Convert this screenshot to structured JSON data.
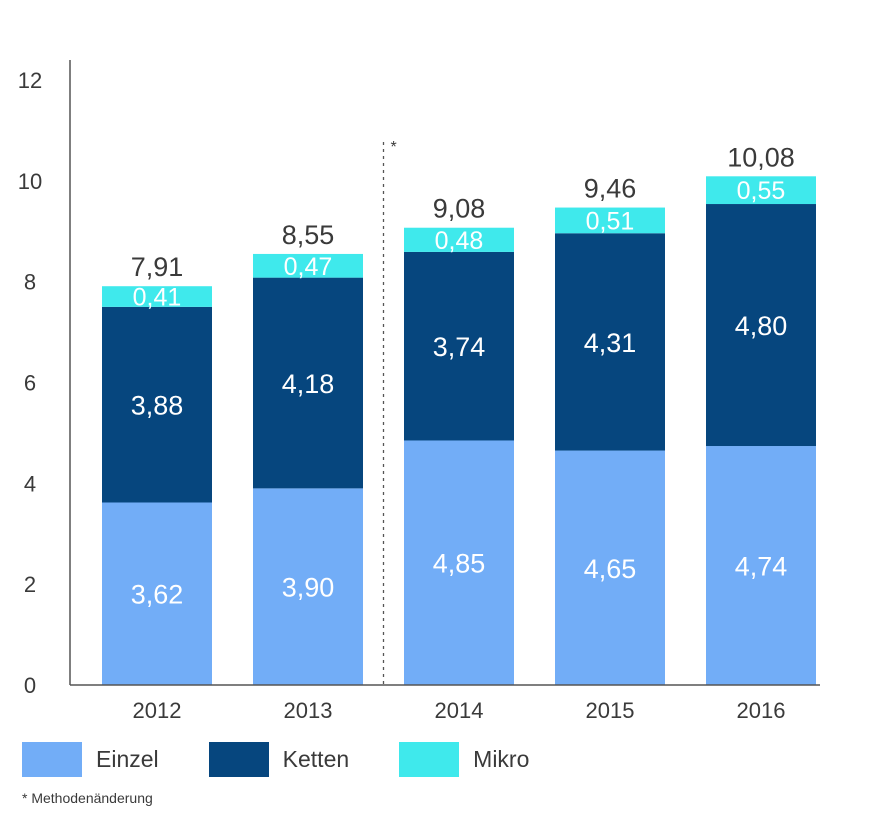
{
  "chart_data": {
    "type": "bar",
    "stacked": true,
    "categories": [
      "2012",
      "2013",
      "2014",
      "2015",
      "2016"
    ],
    "series": [
      {
        "name": "Einzel",
        "values": [
          3.62,
          3.9,
          4.85,
          4.65,
          4.74
        ],
        "labels": [
          "3,62",
          "3,90",
          "4,85",
          "4,65",
          "4,74"
        ],
        "color": "#72adf7"
      },
      {
        "name": "Ketten",
        "values": [
          3.88,
          4.18,
          3.74,
          4.31,
          4.8
        ],
        "labels": [
          "3,88",
          "4,18",
          "3,74",
          "4,31",
          "4,80"
        ],
        "color": "#06467e"
      },
      {
        "name": "Mikro",
        "values": [
          0.41,
          0.47,
          0.48,
          0.51,
          0.55
        ],
        "labels": [
          "0,41",
          "0,47",
          "0,48",
          "0,51",
          "0,55"
        ],
        "color": "#3fe9ec"
      }
    ],
    "totals": [
      "7,91",
      "8,55",
      "9,08",
      "9,46",
      "10,08"
    ],
    "yticks": [
      "0",
      "2",
      "4",
      "6",
      "8",
      "10",
      "12"
    ],
    "ylim": [
      0,
      12
    ],
    "divider_mark": "*",
    "grid": false,
    "legend_position": "bottom-left"
  },
  "footnote": "* Methodenänderung"
}
